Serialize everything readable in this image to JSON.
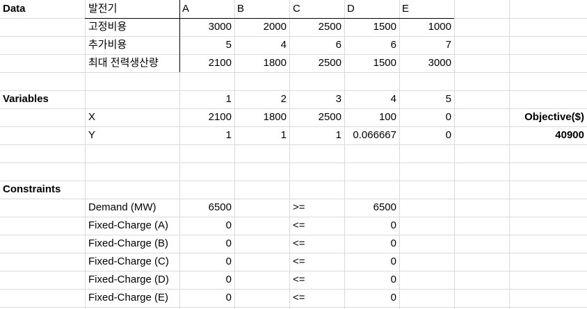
{
  "colors": {
    "grid": "#dadada",
    "border": "#000000",
    "text": "#000000"
  },
  "rows": [
    [
      {
        "c": 0,
        "t": "Data",
        "bold": true
      },
      {
        "c": 1,
        "t": "발전기"
      },
      {
        "c": 2,
        "t": "A"
      },
      {
        "c": 3,
        "t": "B"
      },
      {
        "c": 4,
        "t": "C"
      },
      {
        "c": 5,
        "t": "D"
      },
      {
        "c": 6,
        "t": "E"
      }
    ],
    [
      {
        "c": 1,
        "t": "고정비용"
      },
      {
        "c": 2,
        "t": "3000",
        "r": true
      },
      {
        "c": 3,
        "t": "2000",
        "r": true
      },
      {
        "c": 4,
        "t": "2500",
        "r": true
      },
      {
        "c": 5,
        "t": "1500",
        "r": true
      },
      {
        "c": 6,
        "t": "1000",
        "r": true
      }
    ],
    [
      {
        "c": 1,
        "t": "추가비용"
      },
      {
        "c": 2,
        "t": "5",
        "r": true
      },
      {
        "c": 3,
        "t": "4",
        "r": true
      },
      {
        "c": 4,
        "t": "6",
        "r": true
      },
      {
        "c": 5,
        "t": "6",
        "r": true
      },
      {
        "c": 6,
        "t": "7",
        "r": true
      }
    ],
    [
      {
        "c": 1,
        "t": "최대 전력생산량"
      },
      {
        "c": 2,
        "t": "2100",
        "r": true
      },
      {
        "c": 3,
        "t": "1800",
        "r": true
      },
      {
        "c": 4,
        "t": "2500",
        "r": true
      },
      {
        "c": 5,
        "t": "1500",
        "r": true
      },
      {
        "c": 6,
        "t": "3000",
        "r": true
      }
    ],
    [],
    [
      {
        "c": 0,
        "t": "Variables",
        "bold": true
      },
      {
        "c": 2,
        "t": "1",
        "r": true
      },
      {
        "c": 3,
        "t": "2",
        "r": true
      },
      {
        "c": 4,
        "t": "3",
        "r": true
      },
      {
        "c": 5,
        "t": "4",
        "r": true
      },
      {
        "c": 6,
        "t": "5",
        "r": true
      }
    ],
    [
      {
        "c": 1,
        "t": "X"
      },
      {
        "c": 2,
        "t": "2100",
        "r": true
      },
      {
        "c": 3,
        "t": "1800",
        "r": true
      },
      {
        "c": 4,
        "t": "2500",
        "r": true
      },
      {
        "c": 5,
        "t": "100",
        "r": true
      },
      {
        "c": 6,
        "t": "0",
        "r": true
      },
      {
        "c": 7,
        "t": "Objective($)",
        "r": true,
        "bold": true
      }
    ],
    [
      {
        "c": 1,
        "t": "Y"
      },
      {
        "c": 2,
        "t": "1",
        "r": true
      },
      {
        "c": 3,
        "t": "1",
        "r": true
      },
      {
        "c": 4,
        "t": "1",
        "r": true
      },
      {
        "c": 5,
        "t": "0.066667",
        "r": true
      },
      {
        "c": 6,
        "t": "0",
        "r": true
      },
      {
        "c": 7,
        "t": "40900",
        "r": true,
        "bold": true
      }
    ],
    [],
    [],
    [
      {
        "c": 0,
        "t": "Constraints",
        "bold": true
      }
    ],
    [
      {
        "c": 1,
        "t": "Demand (MW)"
      },
      {
        "c": 2,
        "t": "6500",
        "r": true
      },
      {
        "c": 4,
        "t": ">="
      },
      {
        "c": 5,
        "t": "6500",
        "r": true
      }
    ],
    [
      {
        "c": 1,
        "t": "Fixed-Charge (A)"
      },
      {
        "c": 2,
        "t": "0",
        "r": true
      },
      {
        "c": 4,
        "t": "<="
      },
      {
        "c": 5,
        "t": "0",
        "r": true
      }
    ],
    [
      {
        "c": 1,
        "t": "Fixed-Charge (B)"
      },
      {
        "c": 2,
        "t": "0",
        "r": true
      },
      {
        "c": 4,
        "t": "<="
      },
      {
        "c": 5,
        "t": "0",
        "r": true
      }
    ],
    [
      {
        "c": 1,
        "t": "Fixed-Charge (C)"
      },
      {
        "c": 2,
        "t": "0",
        "r": true
      },
      {
        "c": 4,
        "t": "<="
      },
      {
        "c": 5,
        "t": "0",
        "r": true
      }
    ],
    [
      {
        "c": 1,
        "t": "Fixed-Charge (D)"
      },
      {
        "c": 2,
        "t": "0",
        "r": true
      },
      {
        "c": 4,
        "t": "<="
      },
      {
        "c": 5,
        "t": "0",
        "r": true
      }
    ],
    [
      {
        "c": 1,
        "t": "Fixed-Charge (E)"
      },
      {
        "c": 2,
        "t": "0",
        "r": true
      },
      {
        "c": 4,
        "t": "<="
      },
      {
        "c": 5,
        "t": "0",
        "r": true
      }
    ]
  ]
}
